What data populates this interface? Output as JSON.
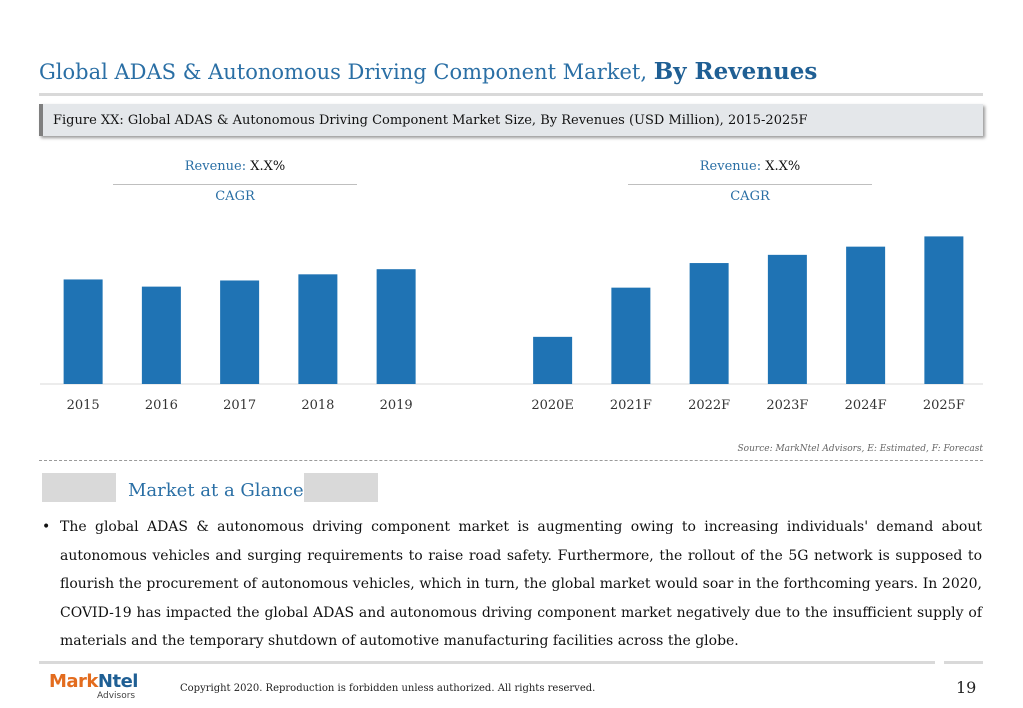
{
  "header": {
    "title_regular": "Global ADAS & Autonomous Driving Component Market, ",
    "title_bold": "By Revenues",
    "figure_caption": "Figure XX: Global ADAS & Autonomous Driving Component Market Size, By Revenues (USD Million), 2015-2025F"
  },
  "cagr_left": {
    "label": "Revenue: ",
    "value": "X.X%",
    "sub": "CAGR"
  },
  "cagr_right": {
    "label": "Revenue: ",
    "value": "X.X%",
    "sub": "CAGR"
  },
  "chart_data": {
    "type": "bar",
    "categories": [
      "2015",
      "2016",
      "2017",
      "2018",
      "2019",
      "",
      "2020E",
      "2021F",
      "2022F",
      "2023F",
      "2024F",
      "2025F"
    ],
    "values": [
      102,
      95,
      101,
      107,
      112,
      null,
      46,
      94,
      118,
      126,
      134,
      144
    ],
    "ylim": [
      0,
      160
    ],
    "bar_color": "#1f73b4",
    "grid": false,
    "note": ""
  },
  "source": "Source: MarkNtel Advisors, E: Estimated, F: Forecast",
  "glance": {
    "title": "Market at a Glance",
    "bullet": "•",
    "text": "The global ADAS & autonomous driving component market is augmenting owing to increasing individuals' demand about autonomous vehicles and surging requirements to raise road safety. Furthermore, the rollout of the 5G network is supposed to flourish the procurement of autonomous vehicles, which in turn, the global market would soar in the forthcoming years. In 2020, COVID-19 has impacted the global ADAS and autonomous driving component market negatively due to the insufficient supply of materials and the temporary shutdown of automotive manufacturing facilities across the globe."
  },
  "footer": {
    "logo_mark": "Mark",
    "logo_ntel": "Ntel",
    "logo_sub": "Advisors",
    "copyright": "Copyright 2020. Reproduction is forbidden unless authorized. All rights reserved.",
    "page_number": "19"
  },
  "colors": {
    "accent": "#2a6fa5",
    "bar": "#1f73b4",
    "logo_orange": "#e36c1e"
  }
}
